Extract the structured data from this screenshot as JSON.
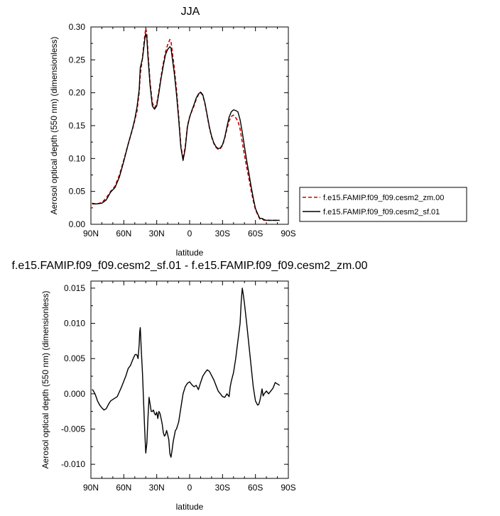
{
  "chart_data": [
    {
      "type": "line",
      "title": "JJA",
      "xlabel": "latitude",
      "ylabel": "Aerosol optical depth (550 nm) (dimensionless)",
      "xlim": [
        90,
        -90
      ],
      "ylim": [
        0,
        0.3
      ],
      "xticks": [
        {
          "v": 90,
          "label": "90N"
        },
        {
          "v": 60,
          "label": "60N"
        },
        {
          "v": 30,
          "label": "30N"
        },
        {
          "v": 0,
          "label": "0"
        },
        {
          "v": -30,
          "label": "30S"
        },
        {
          "v": -60,
          "label": "60S"
        },
        {
          "v": -90,
          "label": "90S"
        }
      ],
      "yticks": [
        {
          "v": 0,
          "label": "0.00"
        },
        {
          "v": 0.05,
          "label": "0.05"
        },
        {
          "v": 0.1,
          "label": "0.10"
        },
        {
          "v": 0.15,
          "label": "0.15"
        },
        {
          "v": 0.2,
          "label": "0.20"
        },
        {
          "v": 0.25,
          "label": "0.25"
        },
        {
          "v": 0.3,
          "label": "0.30"
        }
      ],
      "legend_position": "right",
      "series": [
        {
          "name": "f.e15.FAMIP.f09_f09.cesm2_zm.00",
          "color": "#cc0000",
          "dash": "dashed",
          "x": [
            89,
            85,
            80,
            76,
            72,
            68,
            64,
            60,
            56,
            52,
            50,
            48,
            46,
            45,
            44,
            43,
            42,
            41,
            40,
            39,
            38,
            36,
            34,
            32,
            30,
            28,
            26,
            24,
            22,
            20,
            18,
            17,
            16,
            14,
            12,
            10,
            8,
            6,
            4,
            2,
            0,
            -2,
            -4,
            -6,
            -8,
            -10,
            -12,
            -14,
            -16,
            -18,
            -20,
            -22,
            -24,
            -26,
            -28,
            -30,
            -32,
            -34,
            -36,
            -38,
            -40,
            -42,
            -44,
            -46,
            -48,
            -50,
            -52,
            -54,
            -56,
            -58,
            -60,
            -62,
            -64,
            -66,
            -68,
            -70,
            -72,
            -74,
            -76,
            -78,
            -80,
            -82
          ],
          "y": [
            0.031,
            0.031,
            0.033,
            0.04,
            0.05,
            0.058,
            0.075,
            0.098,
            0.122,
            0.145,
            0.158,
            0.172,
            0.2,
            0.228,
            0.24,
            0.253,
            0.27,
            0.285,
            0.298,
            0.29,
            0.262,
            0.215,
            0.185,
            0.177,
            0.183,
            0.203,
            0.225,
            0.245,
            0.262,
            0.273,
            0.281,
            0.278,
            0.265,
            0.238,
            0.205,
            0.165,
            0.12,
            0.099,
            0.118,
            0.15,
            0.163,
            0.172,
            0.18,
            0.19,
            0.197,
            0.2,
            0.196,
            0.183,
            0.165,
            0.147,
            0.133,
            0.123,
            0.117,
            0.114,
            0.115,
            0.12,
            0.131,
            0.145,
            0.157,
            0.164,
            0.166,
            0.162,
            0.157,
            0.145,
            0.125,
            0.105,
            0.087,
            0.07,
            0.052,
            0.036,
            0.022,
            0.015,
            0.008,
            0.008,
            0.006,
            0.007,
            0.006,
            0.006,
            0.006,
            0.006,
            0.006,
            0.006
          ]
        },
        {
          "name": "f.e15.FAMIP.f09_f09.cesm2_sf.01",
          "color": "#000000",
          "dash": "solid",
          "x": [
            89,
            85,
            80,
            76,
            72,
            68,
            64,
            60,
            56,
            52,
            50,
            48,
            46,
            45,
            44,
            43,
            42,
            41,
            40,
            39,
            38,
            36,
            34,
            32,
            30,
            28,
            26,
            24,
            22,
            20,
            18,
            17,
            16,
            14,
            12,
            10,
            8,
            6,
            4,
            2,
            0,
            -2,
            -4,
            -6,
            -8,
            -10,
            -12,
            -14,
            -16,
            -18,
            -20,
            -22,
            -24,
            -26,
            -28,
            -30,
            -32,
            -34,
            -36,
            -38,
            -40,
            -42,
            -44,
            -46,
            -48,
            -50,
            -52,
            -54,
            -56,
            -58,
            -60,
            -62,
            -64,
            -66,
            -68,
            -70,
            -72,
            -74,
            -76,
            -78,
            -80,
            -82
          ],
          "y": [
            0.032,
            0.031,
            0.032,
            0.037,
            0.049,
            0.056,
            0.072,
            0.096,
            0.122,
            0.146,
            0.16,
            0.178,
            0.205,
            0.238,
            0.245,
            0.252,
            0.265,
            0.28,
            0.29,
            0.283,
            0.255,
            0.21,
            0.18,
            0.175,
            0.18,
            0.2,
            0.222,
            0.241,
            0.258,
            0.266,
            0.27,
            0.268,
            0.255,
            0.23,
            0.198,
            0.16,
            0.117,
            0.097,
            0.115,
            0.148,
            0.163,
            0.173,
            0.182,
            0.192,
            0.198,
            0.201,
            0.197,
            0.184,
            0.166,
            0.148,
            0.134,
            0.124,
            0.118,
            0.115,
            0.116,
            0.121,
            0.132,
            0.148,
            0.163,
            0.171,
            0.174,
            0.173,
            0.171,
            0.159,
            0.14,
            0.118,
            0.097,
            0.078,
            0.058,
            0.04,
            0.024,
            0.016,
            0.009,
            0.009,
            0.007,
            0.006,
            0.006,
            0.006,
            0.006,
            0.006,
            0.006,
            0.006
          ]
        }
      ]
    },
    {
      "type": "line",
      "title": "f.e15.FAMIP.f09_f09.cesm2_sf.01 - f.e15.FAMIP.f09_f09.cesm2_zm.00",
      "xlabel": "latitude",
      "ylabel": "Aerosol optical depth (550 nm) (dimensionless)",
      "xlim": [
        90,
        -90
      ],
      "ylim": [
        -0.012,
        0.016
      ],
      "xticks": [
        {
          "v": 90,
          "label": "90N"
        },
        {
          "v": 60,
          "label": "60N"
        },
        {
          "v": 30,
          "label": "30N"
        },
        {
          "v": 0,
          "label": "0"
        },
        {
          "v": -30,
          "label": "30S"
        },
        {
          "v": -60,
          "label": "60S"
        },
        {
          "v": -90,
          "label": "90S"
        }
      ],
      "yticks": [
        {
          "v": -0.01,
          "label": "-0.010"
        },
        {
          "v": -0.005,
          "label": "-0.005"
        },
        {
          "v": 0.0,
          "label": "0.000"
        },
        {
          "v": 0.005,
          "label": "0.005"
        },
        {
          "v": 0.01,
          "label": "0.010"
        },
        {
          "v": 0.015,
          "label": "0.015"
        }
      ],
      "series": [
        {
          "name": "",
          "color": "#000000",
          "dash": "solid",
          "x": [
            89,
            88,
            86,
            84,
            82,
            80,
            78,
            76,
            74,
            72,
            70,
            68,
            66,
            64,
            62,
            60,
            58,
            56,
            54,
            52,
            50,
            49,
            48,
            47,
            46,
            45.5,
            45,
            44,
            43,
            42,
            41,
            40,
            39,
            38,
            37,
            36,
            35,
            34,
            33,
            32,
            31,
            30,
            29,
            28,
            27,
            26,
            25,
            24,
            23,
            22,
            21,
            20,
            19,
            18,
            17,
            16,
            15,
            14,
            13,
            12,
            10,
            8,
            6,
            4,
            2,
            0,
            -2,
            -4,
            -6,
            -8,
            -10,
            -12,
            -14,
            -16,
            -18,
            -20,
            -22,
            -24,
            -26,
            -28,
            -30,
            -32,
            -34,
            -36,
            -37,
            -38,
            -40,
            -42,
            -44,
            -46,
            -47,
            -48,
            -49,
            -50,
            -52,
            -54,
            -56,
            -58,
            -60,
            -62,
            -63,
            -64,
            -65,
            -66,
            -67,
            -68,
            -70,
            -72,
            -74,
            -76,
            -78,
            -80,
            -82
          ],
          "y": [
            0.0006,
            0.0005,
            -0.0001,
            -0.001,
            -0.0016,
            -0.002,
            -0.0023,
            -0.0021,
            -0.0015,
            -0.001,
            -0.0008,
            -0.0006,
            -0.0004,
            0.0003,
            0.001,
            0.0018,
            0.0026,
            0.0036,
            0.004,
            0.0048,
            0.0055,
            0.0056,
            0.0055,
            0.005,
            0.007,
            0.0088,
            0.0094,
            0.006,
            0.003,
            -0.001,
            -0.005,
            -0.0084,
            -0.007,
            -0.0035,
            -0.0005,
            -0.0015,
            -0.0025,
            -0.0025,
            -0.0023,
            -0.0028,
            -0.003,
            -0.0026,
            -0.0035,
            -0.0025,
            -0.0028,
            -0.0035,
            -0.0043,
            -0.0055,
            -0.006,
            -0.0058,
            -0.0052,
            -0.0058,
            -0.0065,
            -0.0085,
            -0.009,
            -0.008,
            -0.0068,
            -0.006,
            -0.0052,
            -0.005,
            -0.004,
            -0.002,
            0.0,
            0.001,
            0.0015,
            0.0017,
            0.0013,
            0.001,
            0.0012,
            0.0006,
            0.0016,
            0.0025,
            0.003,
            0.0034,
            0.0032,
            0.0026,
            0.002,
            0.0012,
            0.0004,
            0.0,
            -0.0004,
            -0.0005,
            0.0,
            -0.0004,
            0.001,
            0.0018,
            0.003,
            0.005,
            0.0075,
            0.01,
            0.013,
            0.015,
            0.014,
            0.0128,
            0.01,
            0.007,
            0.004,
            0.001,
            -0.001,
            -0.0016,
            -0.0015,
            -0.001,
            -0.0002,
            0.0007,
            -0.0003,
            0.0,
            0.0004,
            0.0,
            0.0004,
            0.0008,
            0.0016,
            0.0014,
            0.0012
          ]
        }
      ]
    }
  ]
}
